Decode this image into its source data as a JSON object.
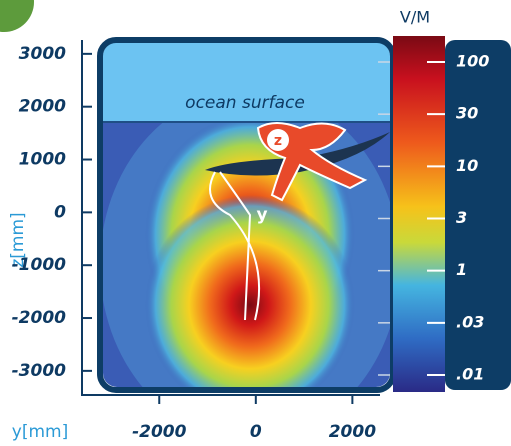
{
  "chart_data": {
    "type": "heatmap",
    "x_label": "y[mm]",
    "y_label": "z[mm]",
    "xlim": [
      -3600,
      2800
    ],
    "xticks": [
      -2000,
      0,
      2000
    ],
    "ylim": [
      -3400,
      3300
    ],
    "yticks": [
      3000,
      2000,
      1000,
      0,
      -1000,
      -2000,
      -3000
    ],
    "colorbar": {
      "title": "V/M",
      "ticks": [
        100,
        30,
        10,
        3,
        1,
        {
          "value": 0.03,
          "label": ".03"
        },
        {
          "value": 0.01,
          "label": ".01"
        }
      ]
    },
    "annotations": [
      "ocean surface",
      "y",
      "z"
    ]
  }
}
